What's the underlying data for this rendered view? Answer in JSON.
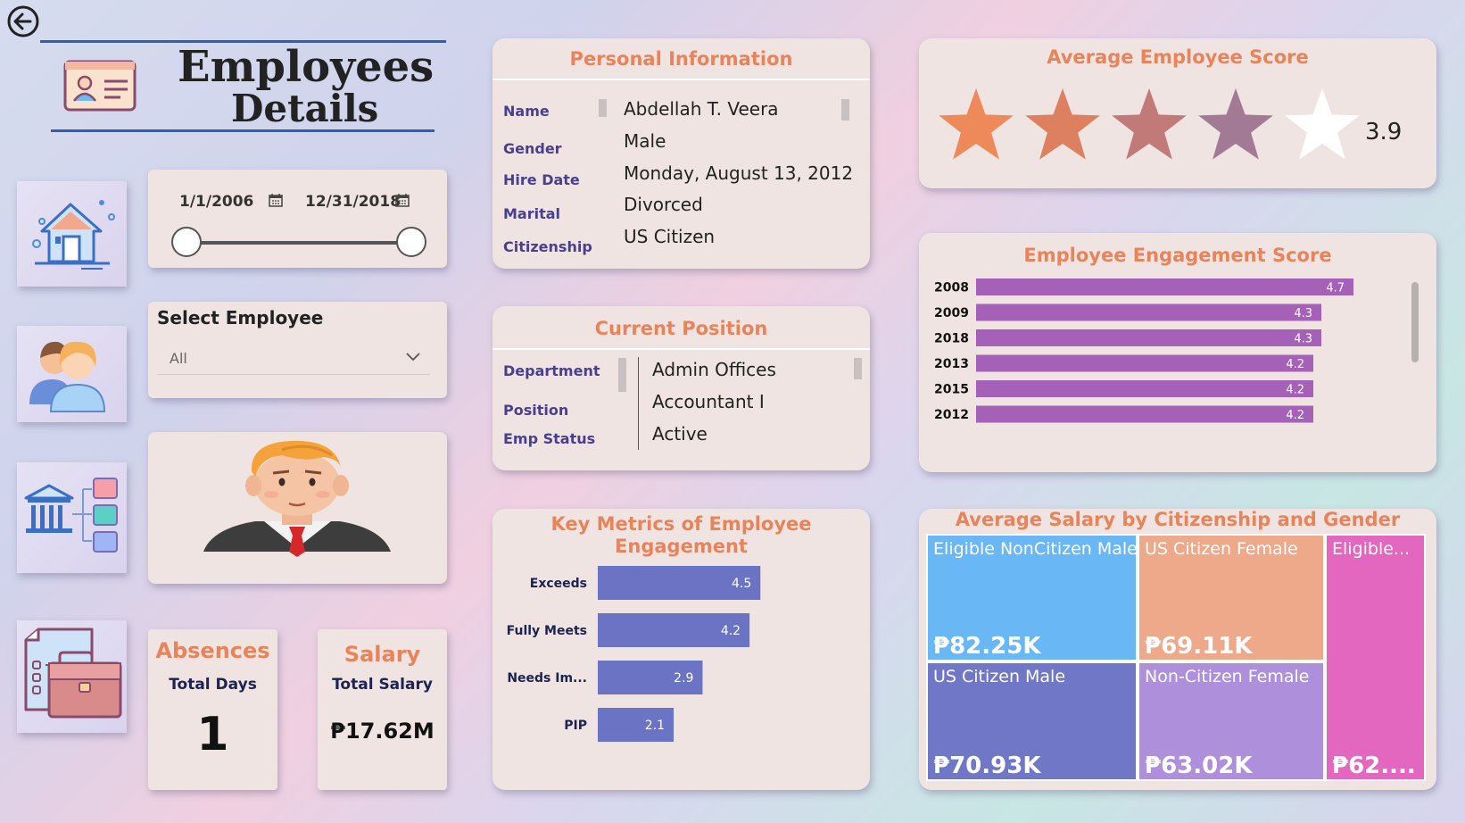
{
  "header": {
    "title_line1": "Employees",
    "title_line2": "Details"
  },
  "nav_icons": [
    "house-icon",
    "people-icon",
    "department-icon",
    "briefcase-icon"
  ],
  "date_slicer": {
    "start": "1/1/2006",
    "end": "12/31/2018"
  },
  "select_employee": {
    "label": "Select Employee",
    "value": "All"
  },
  "absences": {
    "title": "Absences",
    "subtitle": "Total Days",
    "value": "1"
  },
  "salary": {
    "title": "Salary",
    "subtitle": "Total Salary",
    "value": "₱17.62M"
  },
  "personal": {
    "title": "Personal Information",
    "fields": [
      {
        "label": "Name",
        "value": "Abdellah T. Veera"
      },
      {
        "label": "Gender",
        "value": "Male"
      },
      {
        "label": "Hire Date",
        "value": "Monday, August 13, 2012"
      },
      {
        "label": "Marital",
        "value": "Divorced"
      },
      {
        "label": "Citizenship",
        "value": "US Citizen"
      }
    ]
  },
  "position": {
    "title": "Current Position",
    "fields": [
      {
        "label": "Department",
        "value": "Admin Offices"
      },
      {
        "label": "Position",
        "value": "Accountant I"
      },
      {
        "label": "Emp Status",
        "value": "Active"
      }
    ]
  },
  "avg_score": {
    "title": "Average Employee Score",
    "value": "3.9",
    "rating": 3.9,
    "max": 5,
    "star_colors": [
      "#ee8a5a",
      "#dc8060",
      "#c17a78",
      "#a27a96",
      "#ffffff"
    ]
  },
  "chart_data": [
    {
      "type": "bar",
      "title": "Key Metrics of Employee Engagement",
      "orientation": "horizontal",
      "categories": [
        "Exceeds",
        "Fully Meets",
        "Needs Im...",
        "PIP"
      ],
      "values": [
        4.5,
        4.2,
        2.9,
        2.1
      ],
      "value_labels": [
        "4.5",
        "4.2",
        "2.9",
        "2.1"
      ],
      "color": "#6b73c4"
    },
    {
      "type": "bar",
      "title": "Employee Engagement Score",
      "orientation": "horizontal",
      "categories": [
        "2008",
        "2009",
        "2018",
        "2013",
        "2015",
        "2012"
      ],
      "values": [
        4.7,
        4.3,
        4.3,
        4.2,
        4.2,
        4.2
      ],
      "value_labels": [
        "4.7",
        "4.3",
        "4.3",
        "4.2",
        "4.2",
        "4.2"
      ],
      "color": "#a560b8"
    },
    {
      "type": "treemap",
      "title": "Average Salary by Citizenship and Gender",
      "items": [
        {
          "label": "Eligible NonCitizen Male",
          "value_label": "₱82.25K",
          "value": 82.25,
          "color": "#6ab7f5"
        },
        {
          "label": "US Citizen Male",
          "value_label": "₱70.93K",
          "value": 70.93,
          "color": "#7077c6"
        },
        {
          "label": "US Citizen Female",
          "value_label": "₱69.11K",
          "value": 69.11,
          "color": "#eea98a"
        },
        {
          "label": "Non-Citizen Female",
          "value_label": "₱63.02K",
          "value": 63.02,
          "color": "#ad8fdb"
        },
        {
          "label": "Eligible...",
          "value_label": "₱62....",
          "value": 62,
          "color": "#e467bf"
        }
      ]
    }
  ]
}
